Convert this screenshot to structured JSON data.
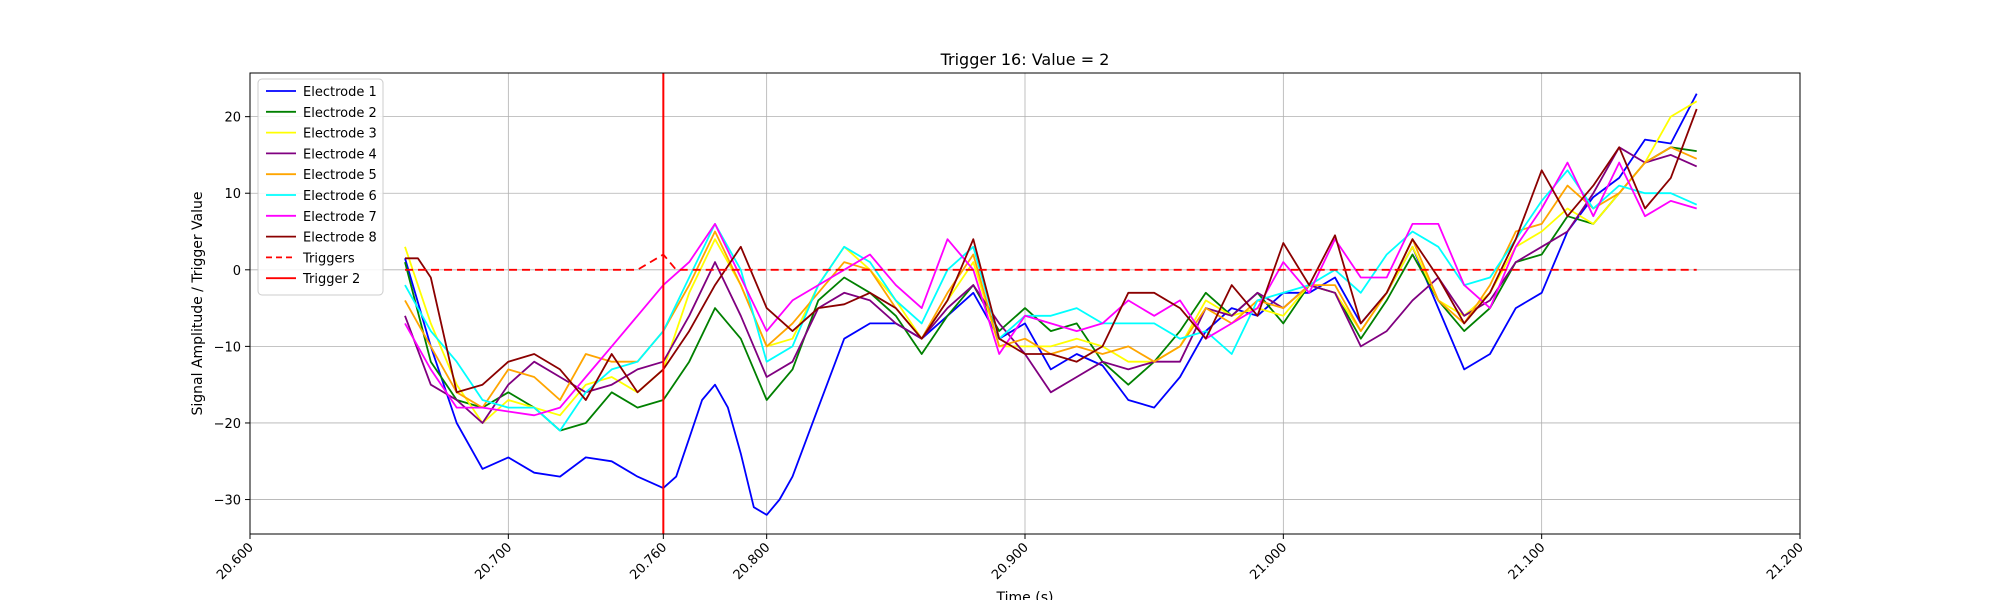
{
  "chart_data": {
    "type": "line",
    "title": "Trigger 16: Value = 2",
    "xlabel": "Time (s)",
    "ylabel": "Signal Amplitude / Trigger Value",
    "xlim": [
      20.6,
      21.2
    ],
    "ylim": [
      -34.5,
      25.7
    ],
    "grid": true,
    "legend_position": "top-left",
    "x_ticks": [
      {
        "value": 20.6,
        "label": "20.600"
      },
      {
        "value": 20.7,
        "label": "20.700"
      },
      {
        "value": 20.76,
        "label": "20.760"
      },
      {
        "value": 20.8,
        "label": "20.800"
      },
      {
        "value": 20.9,
        "label": "20.900"
      },
      {
        "value": 21.0,
        "label": "21.000"
      },
      {
        "value": 21.1,
        "label": "21.100"
      },
      {
        "value": 21.2,
        "label": "21.200"
      }
    ],
    "y_ticks": [
      {
        "value": -30,
        "label": "−30"
      },
      {
        "value": -20,
        "label": "−20"
      },
      {
        "value": -10,
        "label": "−10"
      },
      {
        "value": 0,
        "label": "0"
      },
      {
        "value": 10,
        "label": "10"
      },
      {
        "value": 20,
        "label": "20"
      }
    ],
    "series": [
      {
        "name": "Electrode 1",
        "color": "#0000ff",
        "dash": "",
        "x": [
          20.66,
          20.67,
          20.68,
          20.69,
          20.7,
          20.71,
          20.72,
          20.73,
          20.74,
          20.75,
          20.76,
          20.765,
          20.77,
          20.775,
          20.78,
          20.785,
          20.79,
          20.795,
          20.8,
          20.805,
          20.81,
          20.82,
          20.83,
          20.84,
          20.85,
          20.86,
          20.87,
          20.88,
          20.89,
          20.9,
          20.91,
          20.92,
          20.93,
          20.94,
          20.95,
          20.96,
          20.97,
          20.98,
          20.99,
          21.0,
          21.01,
          21.02,
          21.03,
          21.04,
          21.05,
          21.06,
          21.07,
          21.08,
          21.09,
          21.1,
          21.11,
          21.12,
          21.13,
          21.14,
          21.15,
          21.16
        ],
        "y": [
          1.5,
          -10,
          -20,
          -26,
          -24.5,
          -26.5,
          -27,
          -24.5,
          -25,
          -27,
          -28.5,
          -27,
          -22,
          -17,
          -15,
          -18,
          -24,
          -31,
          -32,
          -30,
          -27,
          -18,
          -9,
          -7,
          -7,
          -9,
          -6,
          -3,
          -9,
          -7,
          -13,
          -11,
          -12.5,
          -17,
          -18,
          -14,
          -8,
          -5,
          -6,
          -3,
          -3,
          -1,
          -7,
          -3,
          3,
          -5,
          -13,
          -11,
          -5,
          -3,
          5,
          9.5,
          12,
          17,
          16.5,
          23
        ]
      },
      {
        "name": "Electrode 2",
        "color": "#008000",
        "dash": "",
        "x": [
          20.66,
          20.67,
          20.68,
          20.69,
          20.7,
          20.71,
          20.72,
          20.73,
          20.74,
          20.75,
          20.76,
          20.77,
          20.78,
          20.79,
          20.8,
          20.81,
          20.82,
          20.83,
          20.84,
          20.85,
          20.86,
          20.87,
          20.88,
          20.89,
          20.9,
          20.91,
          20.92,
          20.93,
          20.94,
          20.95,
          20.96,
          20.97,
          20.98,
          20.99,
          21.0,
          21.01,
          21.02,
          21.03,
          21.04,
          21.05,
          21.06,
          21.07,
          21.08,
          21.09,
          21.1,
          21.11,
          21.12,
          21.13,
          21.14,
          21.15,
          21.16
        ],
        "y": [
          1,
          -12,
          -17,
          -18,
          -16,
          -18,
          -21,
          -20,
          -16,
          -18,
          -17,
          -12,
          -5,
          -9,
          -17,
          -13,
          -4,
          -1,
          -3,
          -6,
          -11,
          -6,
          -2,
          -8,
          -5,
          -8,
          -7,
          -12,
          -15,
          -12,
          -8,
          -3,
          -6,
          -3,
          -7,
          -2,
          -3,
          -9,
          -4,
          2,
          -4,
          -8,
          -5,
          1,
          2,
          7,
          6,
          10,
          14,
          16,
          15.5
        ]
      },
      {
        "name": "Electrode 3",
        "color": "#ffff00",
        "dash": "",
        "x": [
          20.66,
          20.67,
          20.68,
          20.69,
          20.7,
          20.71,
          20.72,
          20.73,
          20.74,
          20.75,
          20.76,
          20.77,
          20.78,
          20.79,
          20.8,
          20.81,
          20.82,
          20.83,
          20.84,
          20.85,
          20.86,
          20.87,
          20.88,
          20.89,
          20.9,
          20.91,
          20.92,
          20.93,
          20.94,
          20.95,
          20.96,
          20.97,
          20.98,
          20.99,
          21.0,
          21.01,
          21.02,
          21.03,
          21.04,
          21.05,
          21.06,
          21.07,
          21.08,
          21.09,
          21.1,
          21.11,
          21.12,
          21.13,
          21.14,
          21.15,
          21.16
        ],
        "y": [
          3,
          -7,
          -15,
          -20,
          -17,
          -18,
          -19,
          -15,
          -14,
          -16,
          -13,
          -3,
          4,
          -2,
          -10,
          -9,
          -2,
          3,
          0,
          -4,
          -9,
          -4,
          1,
          -10,
          -10,
          -10,
          -9,
          -10,
          -12,
          -12,
          -10,
          -4,
          -6,
          -5,
          -6,
          -2,
          -3,
          -8,
          -3,
          3,
          -4,
          -6,
          -3,
          3,
          5,
          8,
          6,
          10,
          14,
          20,
          22
        ]
      },
      {
        "name": "Electrode 4",
        "color": "#800080",
        "dash": "",
        "x": [
          20.66,
          20.67,
          20.68,
          20.69,
          20.7,
          20.71,
          20.72,
          20.73,
          20.74,
          20.75,
          20.76,
          20.77,
          20.78,
          20.79,
          20.8,
          20.81,
          20.82,
          20.83,
          20.84,
          20.85,
          20.86,
          20.87,
          20.88,
          20.89,
          20.9,
          20.91,
          20.92,
          20.93,
          20.94,
          20.95,
          20.96,
          20.97,
          20.98,
          20.99,
          21.0,
          21.01,
          21.02,
          21.03,
          21.04,
          21.05,
          21.06,
          21.07,
          21.08,
          21.09,
          21.1,
          21.11,
          21.12,
          21.13,
          21.14,
          21.15,
          21.16
        ],
        "y": [
          -6,
          -15,
          -17,
          -20,
          -15,
          -12,
          -14,
          -16,
          -15,
          -13,
          -12,
          -6,
          1,
          -6,
          -14,
          -12,
          -5,
          -3,
          -4,
          -7,
          -9,
          -5,
          -2,
          -7,
          -11,
          -16,
          -14,
          -12,
          -13,
          -12,
          -12,
          -5,
          -6,
          -3,
          -5,
          -2,
          -3,
          -10,
          -8,
          -4,
          -1,
          -6,
          -4,
          1,
          3,
          5,
          10,
          16,
          14,
          15,
          13.5
        ]
      },
      {
        "name": "Electrode 5",
        "color": "#ffa500",
        "dash": "",
        "x": [
          20.66,
          20.67,
          20.68,
          20.69,
          20.7,
          20.71,
          20.72,
          20.73,
          20.74,
          20.75,
          20.76,
          20.77,
          20.78,
          20.79,
          20.8,
          20.81,
          20.82,
          20.83,
          20.84,
          20.85,
          20.86,
          20.87,
          20.88,
          20.89,
          20.9,
          20.91,
          20.92,
          20.93,
          20.94,
          20.95,
          20.96,
          20.97,
          20.98,
          20.99,
          21.0,
          21.01,
          21.02,
          21.03,
          21.04,
          21.05,
          21.06,
          21.07,
          21.08,
          21.09,
          21.1,
          21.11,
          21.12,
          21.13,
          21.14,
          21.15,
          21.16
        ],
        "y": [
          -4,
          -10,
          -16,
          -18,
          -13,
          -14,
          -17,
          -11,
          -12,
          -12,
          -8,
          -2,
          5,
          -2,
          -10,
          -7,
          -3,
          1,
          0,
          -5,
          -9,
          -3,
          2,
          -10,
          -9,
          -11,
          -10,
          -11,
          -10,
          -12,
          -10,
          -5,
          -7,
          -4,
          -5,
          -2,
          -2,
          -8,
          -3,
          4,
          -4,
          -7,
          -2,
          5,
          6,
          11,
          8,
          10,
          14,
          16,
          14.5
        ]
      },
      {
        "name": "Electrode 6",
        "color": "#00ffff",
        "dash": "",
        "x": [
          20.66,
          20.67,
          20.68,
          20.69,
          20.7,
          20.71,
          20.72,
          20.73,
          20.74,
          20.75,
          20.76,
          20.77,
          20.78,
          20.79,
          20.8,
          20.81,
          20.82,
          20.83,
          20.84,
          20.85,
          20.86,
          20.87,
          20.88,
          20.89,
          20.9,
          20.91,
          20.92,
          20.93,
          20.94,
          20.95,
          20.96,
          20.97,
          20.98,
          20.99,
          21.0,
          21.01,
          21.02,
          21.03,
          21.04,
          21.05,
          21.06,
          21.07,
          21.08,
          21.09,
          21.1,
          21.11,
          21.12,
          21.13,
          21.14,
          21.15,
          21.16
        ],
        "y": [
          -2,
          -8,
          -12,
          -17,
          -18,
          -18,
          -21,
          -16,
          -13,
          -12,
          -8,
          -1,
          6,
          0,
          -12,
          -10,
          -2,
          3,
          1,
          -4,
          -7,
          0,
          3,
          -9,
          -6,
          -6,
          -5,
          -7,
          -7,
          -7,
          -9,
          -8,
          -11,
          -4,
          -3,
          -2,
          0,
          -3,
          2,
          5,
          3,
          -2,
          -1,
          4,
          9,
          13,
          8,
          11,
          10,
          10,
          8.5
        ]
      },
      {
        "name": "Electrode 7",
        "color": "#ff00ff",
        "dash": "",
        "x": [
          20.66,
          20.67,
          20.68,
          20.69,
          20.7,
          20.71,
          20.72,
          20.73,
          20.74,
          20.75,
          20.76,
          20.77,
          20.78,
          20.79,
          20.8,
          20.81,
          20.82,
          20.83,
          20.84,
          20.85,
          20.86,
          20.87,
          20.88,
          20.89,
          20.9,
          20.91,
          20.92,
          20.93,
          20.94,
          20.95,
          20.96,
          20.97,
          20.98,
          20.99,
          21.0,
          21.01,
          21.02,
          21.03,
          21.04,
          21.05,
          21.06,
          21.07,
          21.08,
          21.09,
          21.1,
          21.11,
          21.12,
          21.13,
          21.14,
          21.15,
          21.16
        ],
        "y": [
          -7,
          -13,
          -18,
          -18,
          -18.5,
          -19,
          -18,
          -14,
          -10,
          -6,
          -2,
          1,
          6,
          -1,
          -8,
          -4,
          -2,
          0,
          2,
          -2,
          -5,
          4,
          0,
          -11,
          -6,
          -7,
          -8,
          -7,
          -4,
          -6,
          -4,
          -9,
          -7,
          -5,
          1,
          -3,
          4,
          -1,
          -1,
          6,
          6,
          -2,
          -5,
          3,
          8,
          14,
          7,
          14,
          7,
          9,
          8
        ]
      },
      {
        "name": "Electrode 8",
        "color": "#8b0000",
        "dash": "",
        "x": [
          20.66,
          20.665,
          20.67,
          20.68,
          20.69,
          20.7,
          20.71,
          20.72,
          20.73,
          20.74,
          20.75,
          20.76,
          20.77,
          20.78,
          20.79,
          20.8,
          20.81,
          20.82,
          20.83,
          20.84,
          20.85,
          20.86,
          20.87,
          20.88,
          20.89,
          20.9,
          20.91,
          20.92,
          20.93,
          20.94,
          20.95,
          20.96,
          20.97,
          20.98,
          20.99,
          21.0,
          21.01,
          21.02,
          21.03,
          21.04,
          21.05,
          21.06,
          21.07,
          21.08,
          21.09,
          21.1,
          21.11,
          21.12,
          21.13,
          21.14,
          21.15,
          21.16
        ],
        "y": [
          1.5,
          1.5,
          -1,
          -16,
          -15,
          -12,
          -11,
          -13,
          -17,
          -11,
          -16,
          -13,
          -8,
          -2,
          3,
          -5,
          -8,
          -5,
          -4.5,
          -3,
          -5,
          -9,
          -4,
          4,
          -9,
          -11,
          -11,
          -12,
          -10,
          -3,
          -3,
          -5,
          -9,
          -2,
          -6,
          3.5,
          -2,
          4.5,
          -7,
          -3,
          4,
          -1,
          -7,
          -3,
          4,
          13,
          7,
          11,
          16,
          8,
          12,
          21
        ]
      },
      {
        "name": "Triggers",
        "color": "#ff0000",
        "dash": "8,5",
        "x": [
          20.66,
          20.75,
          20.76,
          20.765,
          20.77,
          21.16
        ],
        "y": [
          0,
          0,
          2,
          0,
          0,
          0
        ]
      }
    ],
    "vertical_lines": [
      {
        "name": "Trigger 2",
        "x": 20.76,
        "color": "#ff0000"
      }
    ]
  }
}
